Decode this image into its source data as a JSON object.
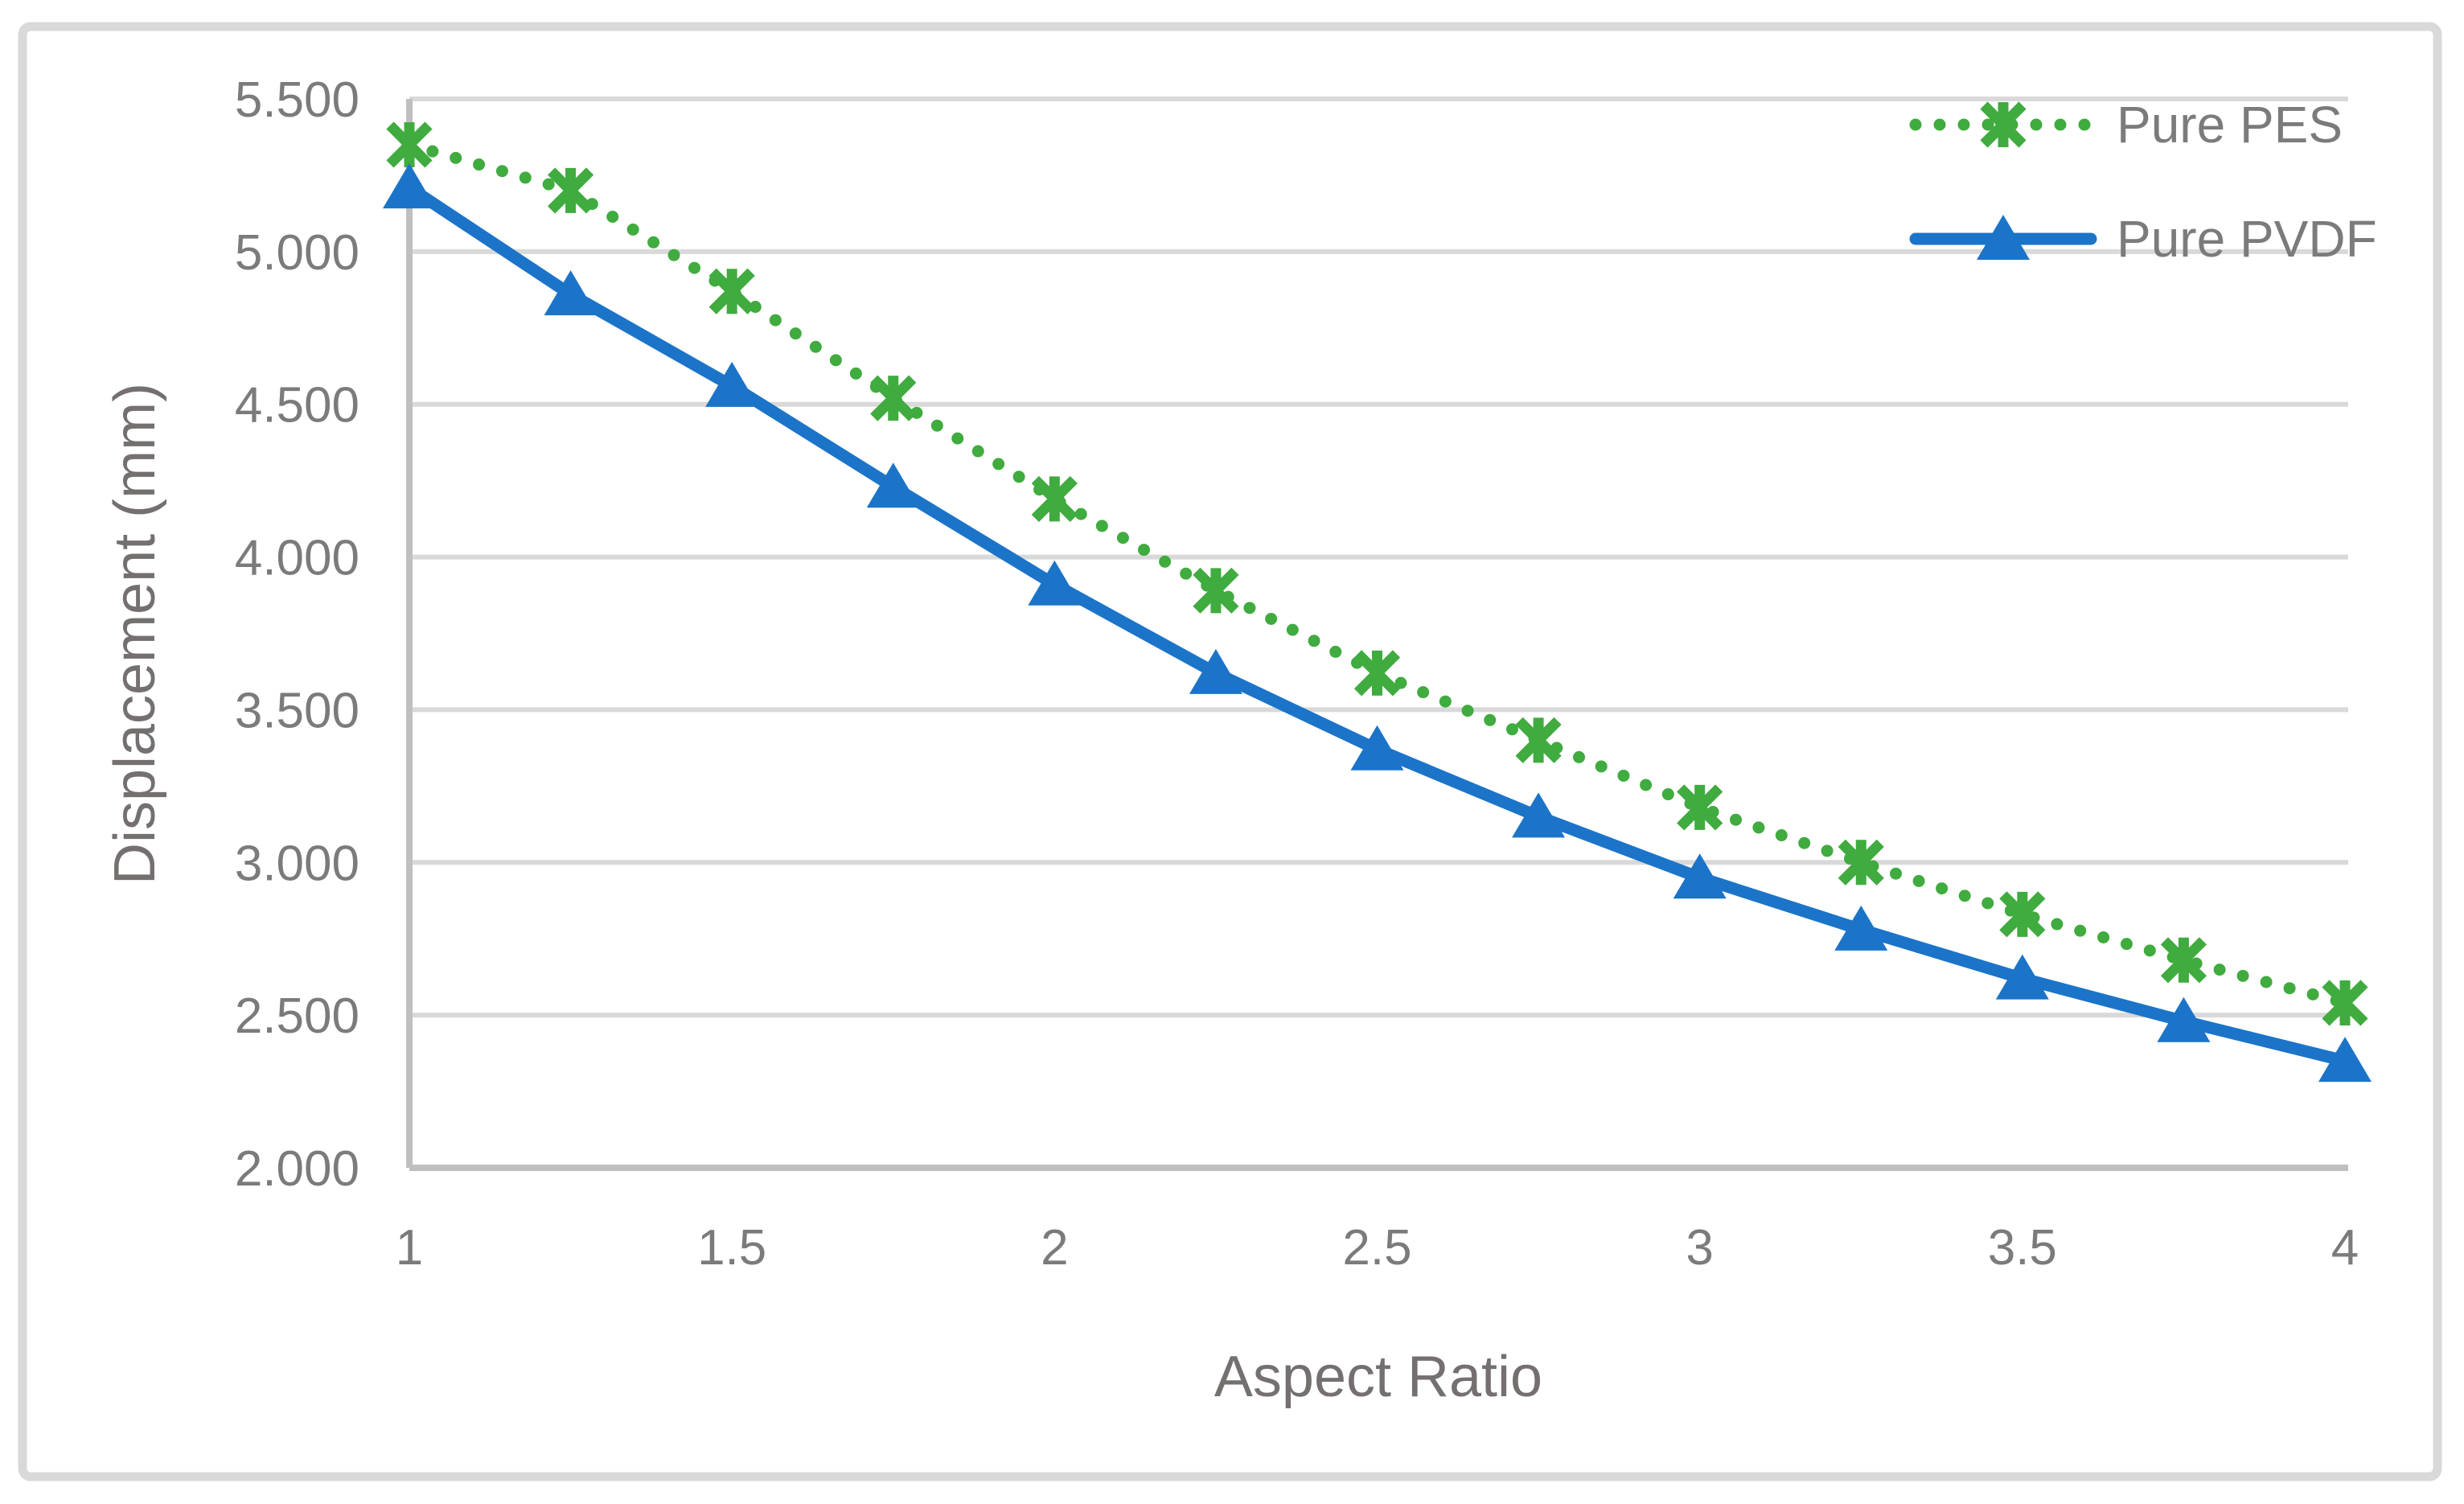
{
  "chart_data": {
    "type": "line",
    "title": "",
    "xlabel": "Aspect Ratio",
    "ylabel": "Displacement (mm)",
    "xlim": [
      1,
      4
    ],
    "ylim": [
      2.0,
      5.5
    ],
    "grid": true,
    "legend_position": "top-right",
    "x": [
      1,
      1.25,
      1.5,
      1.75,
      2,
      2.25,
      2.5,
      2.75,
      3,
      3.25,
      3.5,
      3.75,
      4
    ],
    "series": [
      {
        "name": "Pure PES",
        "color": "#40AB3F",
        "line_style": "dotted",
        "marker": "asterisk",
        "values": [
          5.35,
          5.2,
          4.87,
          4.52,
          4.19,
          3.89,
          3.62,
          3.4,
          3.18,
          3.0,
          2.83,
          2.68,
          2.54
        ]
      },
      {
        "name": "Pure PVDF",
        "color": "#1B74C8",
        "line_style": "solid",
        "marker": "triangle",
        "values": [
          5.21,
          4.86,
          4.56,
          4.23,
          3.91,
          3.62,
          3.37,
          3.15,
          2.95,
          2.78,
          2.62,
          2.48,
          2.35
        ]
      }
    ],
    "y_ticks": [
      {
        "value": 5.5,
        "label": "5.500"
      },
      {
        "value": 5.0,
        "label": "5.000"
      },
      {
        "value": 4.5,
        "label": "4.500"
      },
      {
        "value": 4.0,
        "label": "4.000"
      },
      {
        "value": 3.5,
        "label": "3.500"
      },
      {
        "value": 3.0,
        "label": "3.000"
      },
      {
        "value": 2.5,
        "label": "2.500"
      },
      {
        "value": 2.0,
        "label": "2.000"
      }
    ],
    "x_ticks": [
      {
        "value": 1,
        "label": "1"
      },
      {
        "value": 1.5,
        "label": "1.5"
      },
      {
        "value": 2,
        "label": "2"
      },
      {
        "value": 2.5,
        "label": "2.5"
      },
      {
        "value": 3,
        "label": "3"
      },
      {
        "value": 3.5,
        "label": "3.5"
      },
      {
        "value": 4,
        "label": "4"
      }
    ]
  },
  "colors": {
    "background": "#FFFFFF",
    "chart_border": "#D9D9D9",
    "gridline": "#D9D9D9",
    "axis_line": "#BFBFBF",
    "text": "#7B7B7B",
    "pes_green": "#40AB3F",
    "pvdf_blue": "#1B74C8"
  }
}
